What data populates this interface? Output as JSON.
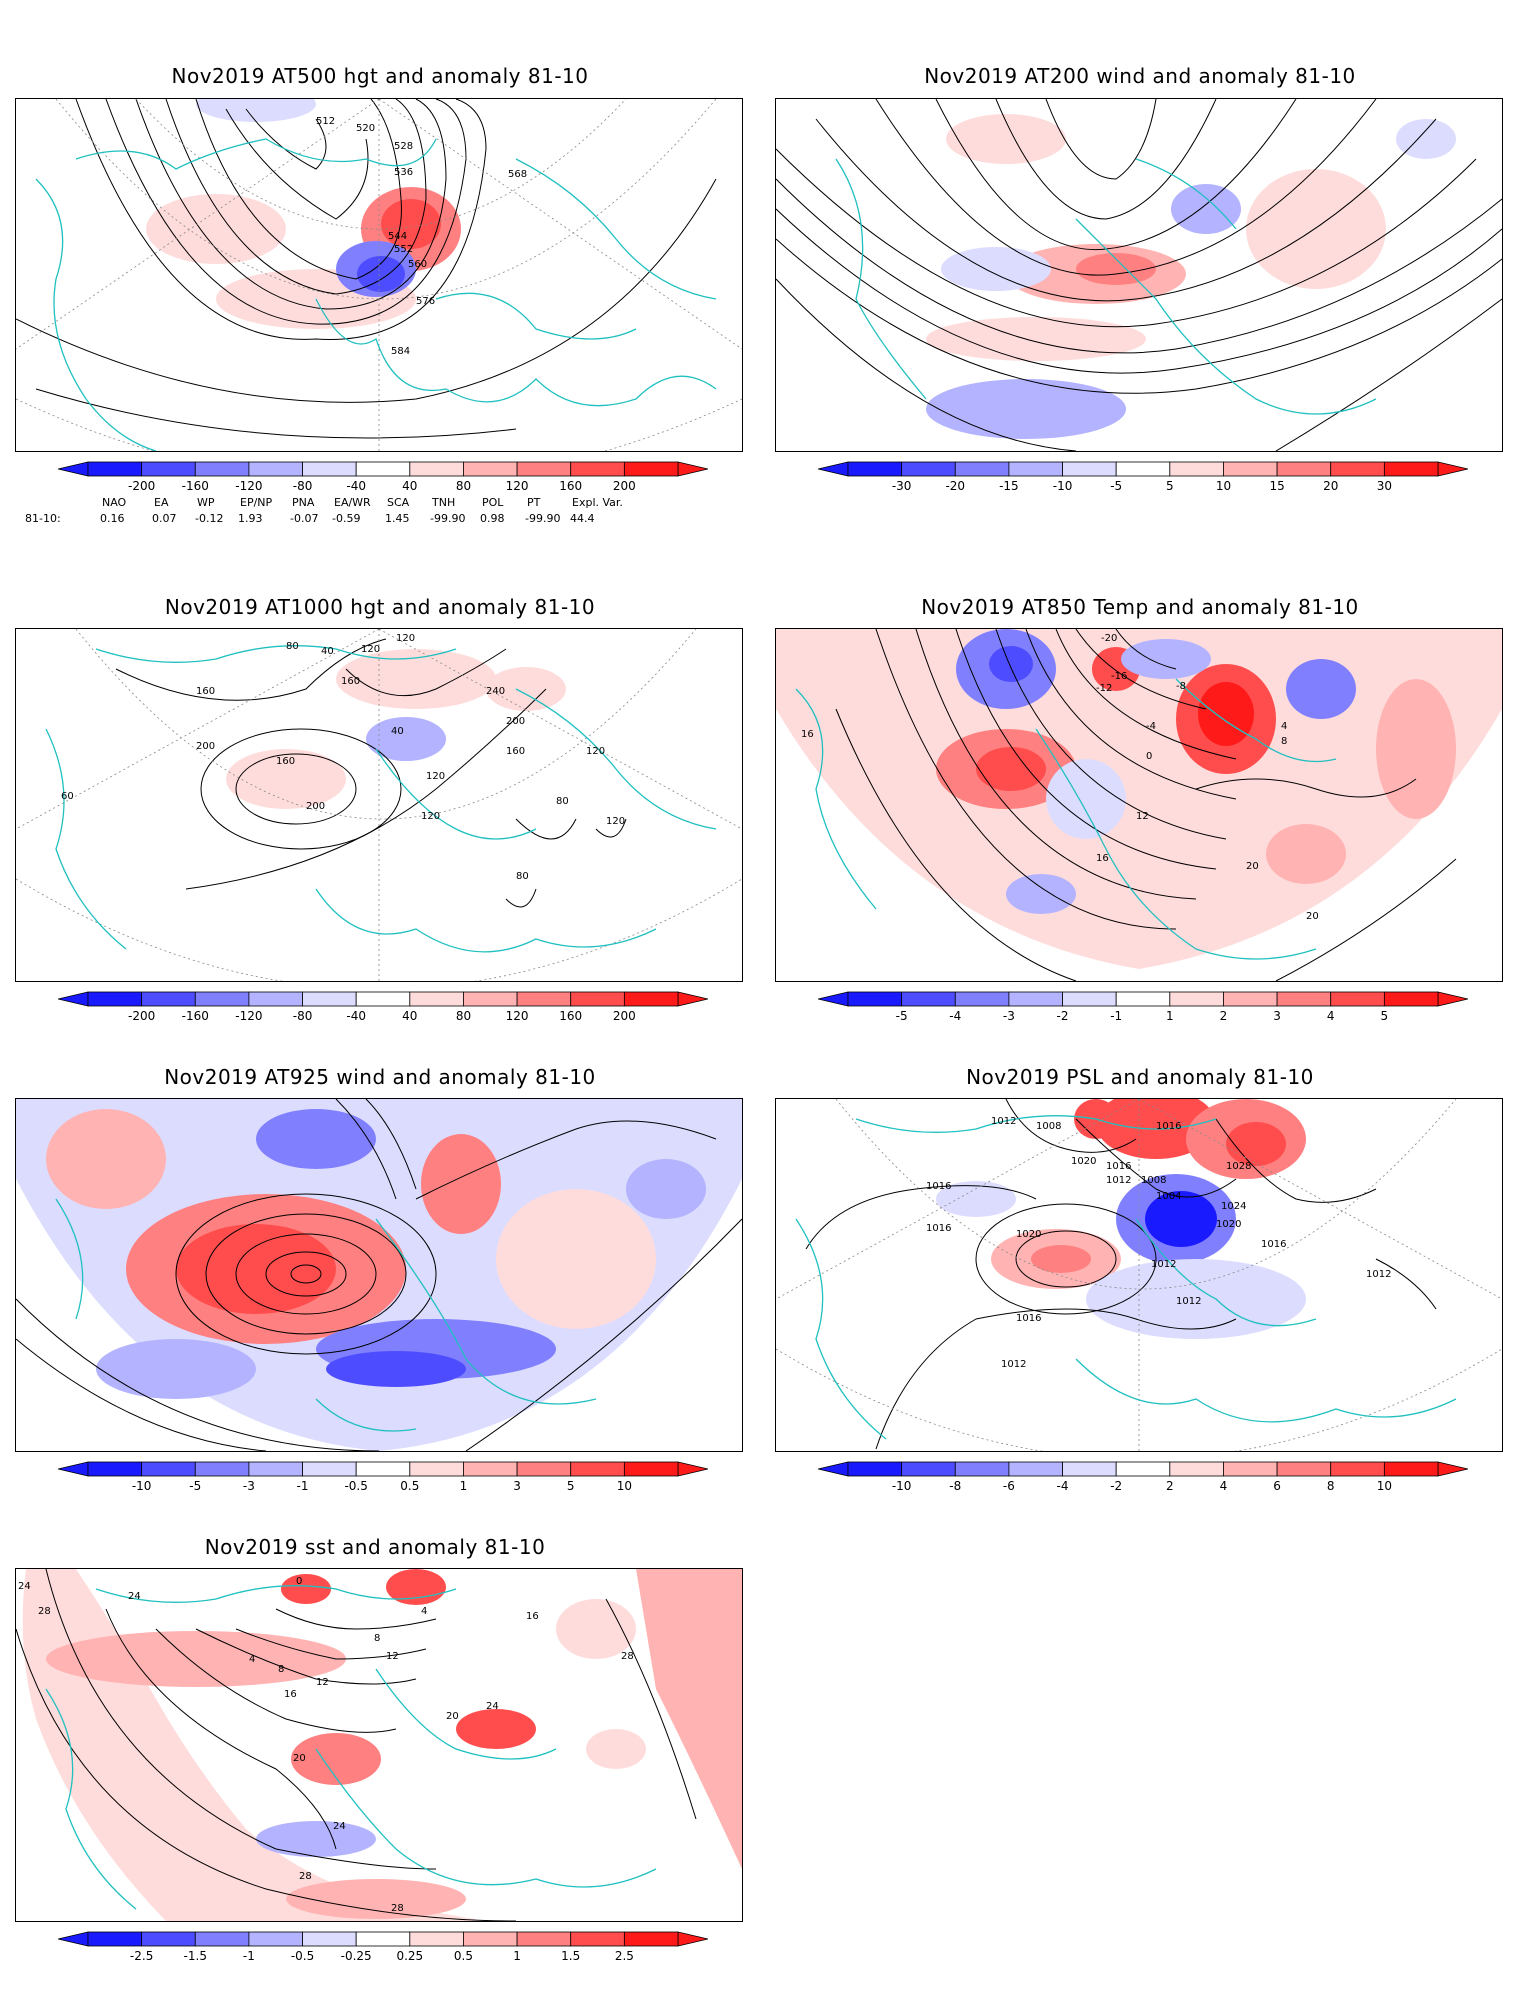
{
  "colors": {
    "coast": "#20c0c0",
    "contour": "#000000",
    "neg": [
      "#1a1aff",
      "#4d4dff",
      "#8080ff",
      "#b3b3ff",
      "#dcdcff"
    ],
    "pos": [
      "#ffdcdc",
      "#ffb3b3",
      "#ff8080",
      "#ff4d4d",
      "#ff1a1a"
    ]
  },
  "panels": [
    {
      "id": "at500",
      "title": "Nov2019 AT500 hgt and anomaly 81-10",
      "ticks": [
        "-200",
        "-160",
        "-120",
        "-80",
        "-40",
        "40",
        "80",
        "120",
        "160",
        "200"
      ],
      "contour_labels": [
        "512",
        "520",
        "528",
        "536",
        "544",
        "552",
        "560",
        "568",
        "576",
        "584"
      ],
      "indices": {
        "header": [
          "NAO",
          "EA",
          "WP",
          "EP/NP",
          "PNA",
          "EA/WR",
          "SCA",
          "TNH",
          "POL",
          "PT",
          "Expl. Var."
        ],
        "row_label": "81-10:",
        "values": [
          "0.16",
          "0.07",
          "-0.12",
          "1.93",
          "-0.07",
          "-0.59",
          "1.45",
          "-99.90",
          "0.98",
          "-99.90",
          "44.4"
        ]
      }
    },
    {
      "id": "at200",
      "title": "Nov2019 AT200 wind and anomaly 81-10",
      "ticks": [
        "-30",
        "-20",
        "-15",
        "-10",
        "-5",
        "5",
        "10",
        "15",
        "20",
        "30"
      ],
      "contour_labels": []
    },
    {
      "id": "at1000",
      "title": "Nov2019 AT1000 hgt and anomaly 81-10",
      "ticks": [
        "-200",
        "-160",
        "-120",
        "-80",
        "-40",
        "40",
        "80",
        "120",
        "160",
        "200"
      ],
      "contour_labels": [
        "120",
        "80",
        "40",
        "120",
        "160",
        "160",
        "200",
        "240",
        "200",
        "160",
        "40",
        "120",
        "120",
        "120",
        "80",
        "120",
        "80",
        "60",
        "200",
        "160"
      ]
    },
    {
      "id": "at850",
      "title": "Nov2019 AT850 Temp and anomaly 81-10",
      "ticks": [
        "-5",
        "-4",
        "-3",
        "-2",
        "-1",
        "1",
        "2",
        "3",
        "4",
        "5"
      ],
      "contour_labels": [
        "-20",
        "-16",
        "-12",
        "-8",
        "-4",
        "0",
        "4",
        "8",
        "12",
        "16",
        "20",
        "20",
        "16"
      ]
    },
    {
      "id": "at925",
      "title": "Nov2019 AT925 wind and anomaly 81-10",
      "ticks": [
        "-10",
        "-5",
        "-3",
        "-1",
        "-0.5",
        "0.5",
        "1",
        "3",
        "5",
        "10"
      ],
      "contour_labels": []
    },
    {
      "id": "psl",
      "title": "Nov2019 PSL and anomaly 81-10",
      "ticks": [
        "-10",
        "-8",
        "-6",
        "-4",
        "-2",
        "2",
        "4",
        "6",
        "8",
        "10"
      ],
      "contour_labels": [
        "1012",
        "1008",
        "1016",
        "1020",
        "1016",
        "1012",
        "1008",
        "1016",
        "1004",
        "1028",
        "1024",
        "1020",
        "1016",
        "1016",
        "1020",
        "1012",
        "1016",
        "1012",
        "1012",
        "1012"
      ]
    },
    {
      "id": "sst",
      "title": "Nov2019 sst and anomaly 81-10",
      "ticks": [
        "-2.5",
        "-1.5",
        "-1",
        "-0.5",
        "-0.25",
        "0.25",
        "0.5",
        "1",
        "1.5",
        "2.5"
      ],
      "contour_labels": [
        "24",
        "28",
        "24",
        "0",
        "4",
        "8",
        "12",
        "16",
        "20",
        "24",
        "28",
        "28",
        "4",
        "8",
        "12",
        "16",
        "20",
        "24",
        "28"
      ]
    }
  ]
}
